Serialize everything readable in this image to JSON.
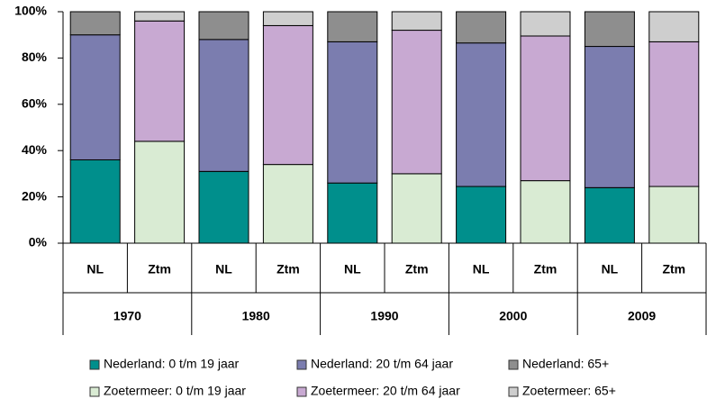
{
  "chart_data": {
    "type": "stacked_bar",
    "categories": [
      "NL",
      "Ztm",
      "NL",
      "Ztm",
      "NL",
      "Ztm",
      "NL",
      "Ztm",
      "NL",
      "Ztm"
    ],
    "groups": [
      "1970",
      "1980",
      "1990",
      "2000",
      "2009"
    ],
    "series": [
      {
        "name": "Nederland: 0 t/m 19 jaar",
        "color": "#008f8c",
        "values": [
          36,
          null,
          31,
          null,
          26,
          null,
          24.5,
          null,
          24,
          null
        ]
      },
      {
        "name": "Nederland: 20 t/m 64 jaar",
        "color": "#7b7daf",
        "values": [
          54,
          null,
          57,
          null,
          61,
          null,
          62,
          null,
          61,
          null
        ]
      },
      {
        "name": "Nederland: 65+",
        "color": "#8e8e8e",
        "values": [
          10,
          null,
          12,
          null,
          13,
          null,
          13.5,
          null,
          15,
          null
        ]
      },
      {
        "name": "Zoetermeer: 0 t/m 19 jaar",
        "color": "#d9ebd3",
        "values": [
          null,
          44,
          null,
          34,
          null,
          30,
          null,
          27,
          null,
          24.5
        ]
      },
      {
        "name": "Zoetermeer: 20 t/m 64 jaar",
        "color": "#c8a9d2",
        "values": [
          null,
          52,
          null,
          60,
          null,
          62,
          null,
          62.5,
          null,
          62.5
        ]
      },
      {
        "name": "Zoetermeer: 65+",
        "color": "#cecece",
        "values": [
          null,
          4,
          null,
          6,
          null,
          8,
          null,
          10.5,
          null,
          13
        ]
      }
    ],
    "ylim": [
      0,
      100
    ],
    "yticks": [
      {
        "value": 0,
        "label": "0%"
      },
      {
        "value": 20,
        "label": "20%"
      },
      {
        "value": 40,
        "label": "40%"
      },
      {
        "value": 60,
        "label": "60%"
      },
      {
        "value": 80,
        "label": "80%"
      },
      {
        "value": 100,
        "label": "100%"
      }
    ],
    "legend": "bottom"
  }
}
